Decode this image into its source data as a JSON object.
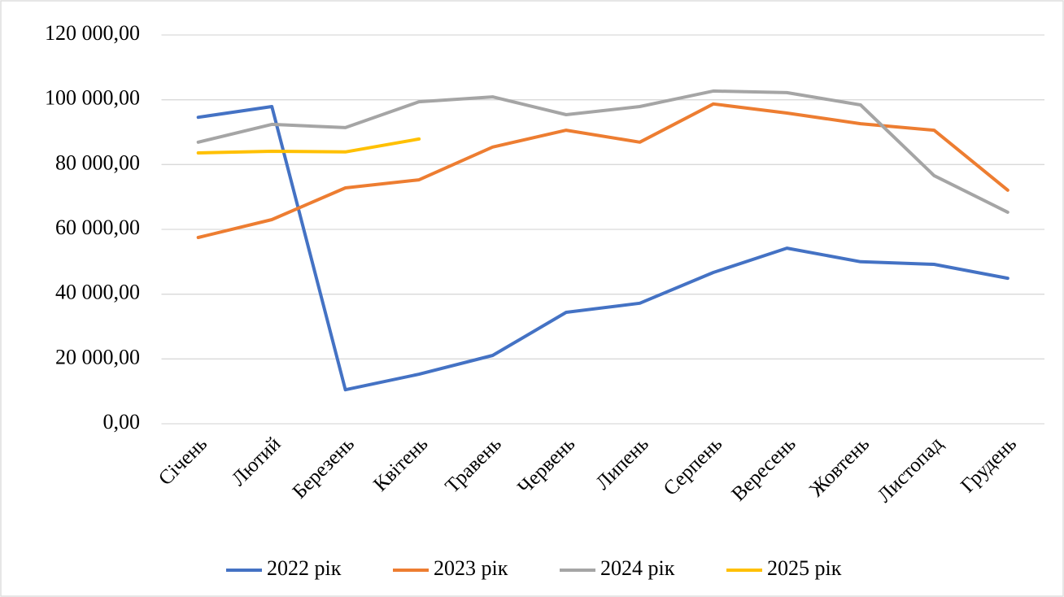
{
  "chart_data": {
    "type": "line",
    "categories": [
      "Січень",
      "Лютий",
      "Березень",
      "Квітень",
      "Травень",
      "Червень",
      "Липень",
      "Серпень",
      "Вересень",
      "Жовтень",
      "Листопад",
      "Грудень"
    ],
    "series": [
      {
        "name": "2022 рік",
        "color": "#4472c4",
        "values": [
          94600,
          97900,
          10500,
          15300,
          21100,
          34400,
          37200,
          46700,
          54200,
          50000,
          49200,
          44900
        ]
      },
      {
        "name": "2023 рік",
        "color": "#ed7d31",
        "values": [
          57500,
          63000,
          72800,
          75300,
          85400,
          90600,
          86900,
          98700,
          95900,
          92600,
          90600,
          72100
        ]
      },
      {
        "name": "2024 рік",
        "color": "#a5a5a5",
        "values": [
          86900,
          92400,
          91400,
          99400,
          100900,
          95400,
          97900,
          102700,
          102200,
          98400,
          76600,
          65300
        ]
      },
      {
        "name": "2025 рік",
        "color": "#ffc000",
        "values": [
          83600,
          84100,
          83900,
          87900,
          null,
          null,
          null,
          null,
          null,
          null,
          null,
          null
        ]
      }
    ],
    "ylim": [
      0,
      120000
    ],
    "yticks": [
      {
        "value": 0,
        "label": "0,00"
      },
      {
        "value": 20000,
        "label": "20 000,00"
      },
      {
        "value": 40000,
        "label": "40 000,00"
      },
      {
        "value": 60000,
        "label": "60 000,00"
      },
      {
        "value": 80000,
        "label": "80 000,00"
      },
      {
        "value": 100000,
        "label": "100 000,00"
      },
      {
        "value": 120000,
        "label": "120 000,00"
      }
    ],
    "grid": true,
    "legend": "bottom"
  }
}
